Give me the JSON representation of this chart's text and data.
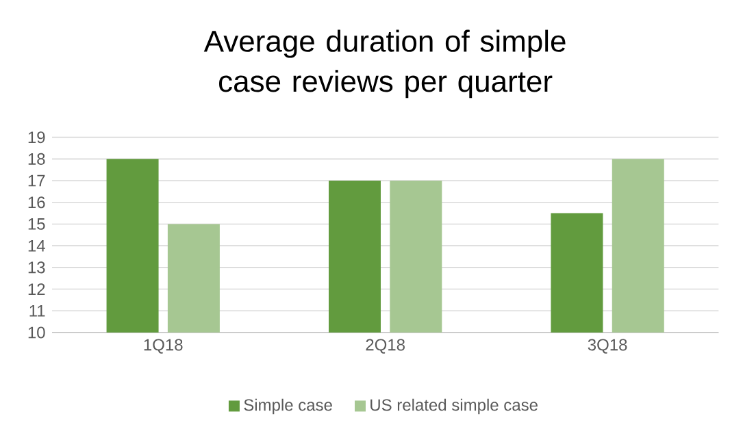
{
  "chart_data": {
    "type": "bar",
    "title": "Average duration of simple case reviews per quarter",
    "categories": [
      "1Q18",
      "2Q18",
      "3Q18"
    ],
    "series": [
      {
        "name": "Simple case",
        "color": "#629b3e",
        "values": [
          18,
          17,
          15.5
        ]
      },
      {
        "name": "US related simple case",
        "color": "#a6c792",
        "values": [
          15,
          17,
          18
        ]
      }
    ],
    "ylim": [
      10,
      19
    ],
    "yticks": [
      10,
      11,
      12,
      13,
      14,
      15,
      16,
      17,
      18,
      19
    ],
    "grid": "y",
    "legend": "bottom"
  }
}
